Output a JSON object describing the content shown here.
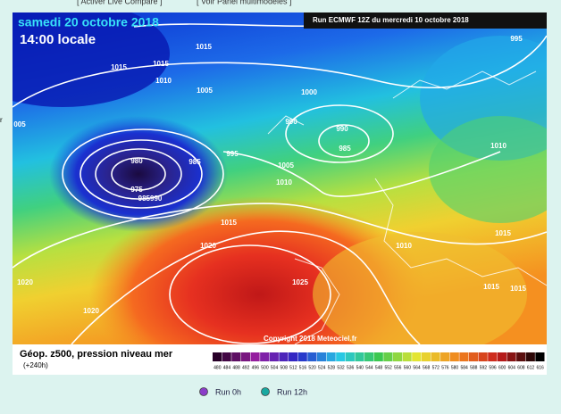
{
  "header": {
    "links": [
      "[ Activer Live Compare ]",
      "[ Voir Panel multimodèles ]"
    ],
    "side_text": "r"
  },
  "map": {
    "date": "samedi 20 octobre 2018",
    "time": "14:00 locale",
    "run": "Run ECMWF 12Z du mercredi 10 octobre 2018",
    "copyright": "Copyright 2018 Meteociel.fr",
    "isobar_labels": [
      "1015",
      "1015",
      "1015",
      "1010",
      "1005",
      "1000",
      "995",
      "990",
      "990",
      "985",
      "1010",
      "995",
      "985",
      "980",
      "975",
      "985990",
      "1005",
      "1010",
      "1015",
      "1020",
      "1010",
      "1015",
      "1020",
      "1025",
      "1015",
      "1015",
      "1020",
      "005"
    ]
  },
  "legend": {
    "title": "Géop. z500, pression niveau mer",
    "lead": "(+240h)",
    "scale": [
      "480",
      "484",
      "488",
      "492",
      "496",
      "500",
      "504",
      "508",
      "512",
      "516",
      "520",
      "524",
      "528",
      "532",
      "536",
      "540",
      "544",
      "548",
      "552",
      "556",
      "560",
      "564",
      "568",
      "572",
      "576",
      "580",
      "584",
      "588",
      "592",
      "596",
      "600",
      "604",
      "608",
      "612",
      "616"
    ]
  },
  "controls": {
    "options": [
      "Run 0h",
      "Run 12h"
    ]
  }
}
